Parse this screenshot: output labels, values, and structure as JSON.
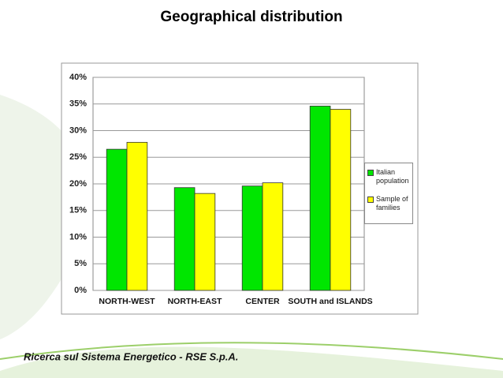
{
  "chart_data": {
    "type": "bar",
    "title": "Geographical distribution",
    "categories": [
      "NORTH-WEST",
      "NORTH-EAST",
      "CENTER",
      "SOUTH and ISLANDS"
    ],
    "series": [
      {
        "name": "Italian population",
        "color": "#00e600",
        "values": [
          26.5,
          19.3,
          19.6,
          34.6
        ]
      },
      {
        "name": "Sample of families",
        "color": "#ffff00",
        "values": [
          27.8,
          18.2,
          20.2,
          34.0
        ]
      }
    ],
    "ylim": [
      0,
      40
    ],
    "yticks": [
      {
        "value": 0,
        "label": "0%"
      },
      {
        "value": 5,
        "label": "5%"
      },
      {
        "value": 10,
        "label": "10%"
      },
      {
        "value": 15,
        "label": "15%"
      },
      {
        "value": 20,
        "label": "20%"
      },
      {
        "value": 25,
        "label": "25%"
      },
      {
        "value": 30,
        "label": "30%"
      },
      {
        "value": 35,
        "label": "35%"
      },
      {
        "value": 40,
        "label": "40%"
      }
    ],
    "grid": true,
    "legend": "right"
  },
  "footer": "Ricerca sul Sistema Energetico - RSE S.p.A."
}
